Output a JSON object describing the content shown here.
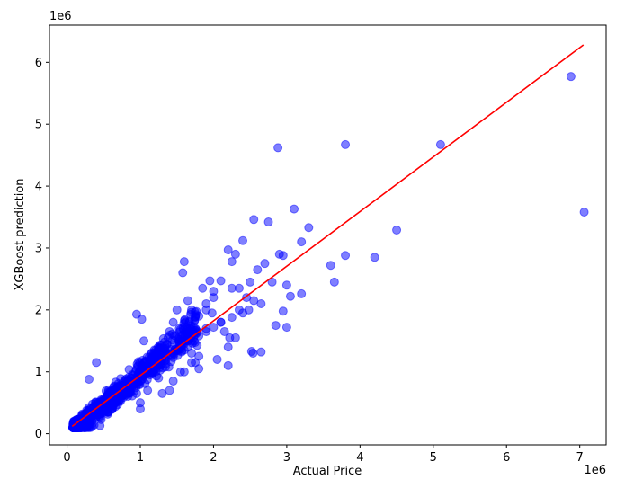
{
  "chart_data": {
    "type": "scatter",
    "title": "",
    "xlabel": "Actual Price",
    "ylabel": "XGBoost prediction",
    "x_offset_label": "1e6",
    "y_offset_label": "1e6",
    "xlim": [
      -240000.0,
      7360000.0
    ],
    "ylim": [
      -180000.0,
      6600000.0
    ],
    "xticks": [
      0,
      1,
      2,
      3,
      4,
      5,
      6,
      7
    ],
    "yticks": [
      0,
      1,
      2,
      3,
      4,
      5,
      6
    ],
    "tick_multiplier": 1000000,
    "grid": false,
    "legend": "none",
    "point_color": "#0000ff",
    "point_alpha": 0.5,
    "line_color": "#ff0000",
    "fit_line": {
      "x": [
        70000,
        7050000
      ],
      "y": [
        120000,
        6280000
      ]
    },
    "points": {
      "x": [
        2880000,
        3800000,
        5100000,
        6880000,
        7060000,
        4500000,
        4200000,
        3800000,
        3600000,
        3650000,
        3300000,
        3200000,
        3100000,
        2550000,
        2750000,
        2400000,
        2300000,
        2200000,
        2250000,
        2100000,
        1950000,
        2000000,
        1900000,
        1800000,
        1700000,
        1600000,
        1580000,
        1500000,
        1450000,
        1400000,
        2600000,
        2700000,
        2500000,
        2350000,
        2450000,
        2550000,
        2480000,
        2900000,
        2950000,
        2800000,
        3000000,
        3050000,
        2650000,
        2850000,
        2950000,
        3200000,
        3000000,
        2650000,
        2200000,
        2050000,
        1800000,
        1700000,
        1600000,
        2200000,
        2300000,
        2150000,
        2100000,
        1900000,
        1750000,
        1650000,
        1550000,
        1450000,
        1350000,
        1250000,
        1150000,
        1050000,
        950000,
        850000,
        750000,
        650000,
        550000,
        450000,
        350000,
        250000,
        150000,
        100000,
        200000,
        300000,
        400000,
        500000,
        600000,
        700000,
        800000,
        900000,
        1000000,
        1100000,
        1200000,
        1300000,
        1400000,
        1500000,
        1600000,
        1700000,
        1800000,
        1900000,
        2000000,
        2100000,
        2250000,
        2400000,
        2520000,
        2540000,
        950000,
        1020000,
        1050000,
        1000000,
        300000,
        400000,
        450000,
        1300000,
        1400000,
        1250000,
        1450000,
        1550000,
        1900000,
        2000000,
        1980000,
        1700000,
        1800000,
        2250000,
        2350000,
        2220000,
        1850000,
        950000,
        1000000,
        1100000,
        850000,
        1600000,
        1650000,
        1750000
      ],
      "y": [
        4620000,
        4670000,
        4670000,
        5770000,
        3580000,
        3290000,
        2850000,
        2880000,
        2720000,
        2450000,
        3330000,
        3100000,
        3630000,
        3460000,
        3420000,
        3120000,
        2900000,
        2970000,
        2780000,
        2470000,
        2470000,
        2300000,
        2100000,
        1900000,
        2000000,
        2780000,
        2600000,
        2000000,
        1800000,
        1650000,
        2650000,
        2750000,
        2450000,
        2350000,
        2200000,
        2150000,
        2000000,
        2900000,
        2880000,
        2450000,
        2400000,
        2220000,
        2100000,
        1750000,
        1980000,
        2260000,
        1720000,
        1320000,
        1100000,
        1200000,
        1050000,
        1300000,
        1000000,
        1400000,
        1550000,
        1650000,
        1800000,
        1700000,
        1600000,
        1500000,
        1400000,
        1300000,
        1200000,
        1100000,
        1050000,
        950000,
        850000,
        750000,
        700000,
        600000,
        500000,
        420000,
        330000,
        250000,
        180000,
        130000,
        230000,
        300000,
        380000,
        480000,
        560000,
        650000,
        750000,
        830000,
        920000,
        1020000,
        1100000,
        1180000,
        1280000,
        1350000,
        1450000,
        1500000,
        1580000,
        1650000,
        1720000,
        1800000,
        1880000,
        1950000,
        1330000,
        1300000,
        1930000,
        1850000,
        1500000,
        400000,
        880000,
        1150000,
        130000,
        650000,
        700000,
        900000,
        850000,
        1000000,
        2000000,
        2200000,
        1950000,
        1150000,
        1250000,
        2350000,
        2000000,
        1550000,
        2350000,
        650000,
        500000,
        700000,
        650000,
        1350000,
        2150000,
        1150000
      ]
    }
  }
}
